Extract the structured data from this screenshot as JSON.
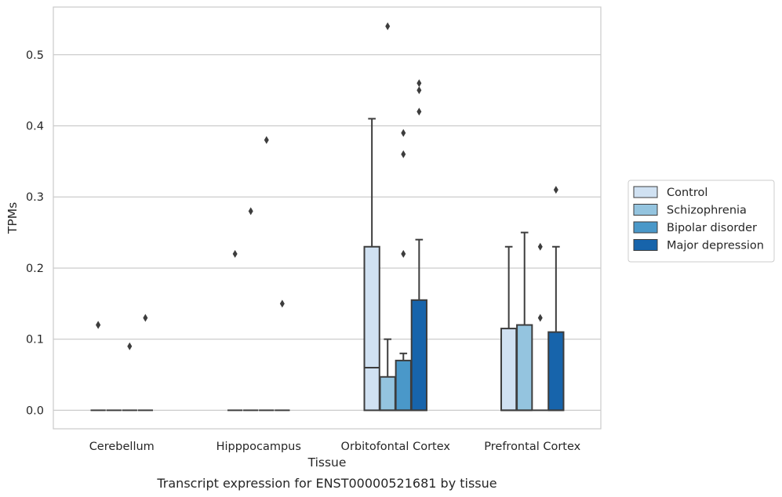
{
  "chart_data": {
    "type": "box",
    "caption": "Transcript expression for ENST00000521681 by tissue",
    "xlabel": "Tissue",
    "ylabel": "TPMs",
    "ylim": [
      -0.026,
      0.567
    ],
    "yticks": [
      0.0,
      0.1,
      0.2,
      0.3,
      0.4,
      0.5
    ],
    "ytick_labels": [
      "0.0",
      "0.1",
      "0.2",
      "0.3",
      "0.4",
      "0.5"
    ],
    "grid": "horizontal",
    "legend_position": "right",
    "categories": [
      "Cerebellum",
      "Hipppocampus",
      "Orbitofontal Cortex",
      "Prefrontal Cortex"
    ],
    "series": [
      {
        "name": "Control",
        "color": "#d0e1f2",
        "boxes": [
          {
            "category": "Cerebellum",
            "whislo": 0,
            "q1": 0,
            "med": 0,
            "q3": 0,
            "whishi": 0,
            "fliers": [
              0.12,
              0.12
            ]
          },
          {
            "category": "Hipppocampus",
            "whislo": 0,
            "q1": 0,
            "med": 0,
            "q3": 0,
            "whishi": 0,
            "fliers": [
              0.22
            ]
          },
          {
            "category": "Orbitofontal Cortex",
            "whislo": 0,
            "q1": 0,
            "med": 0.06,
            "q3": 0.23,
            "whishi": 0.41,
            "fliers": []
          },
          {
            "category": "Prefrontal Cortex",
            "whislo": 0,
            "q1": 0,
            "med": 0,
            "q3": 0.115,
            "whishi": 0.23,
            "fliers": []
          }
        ]
      },
      {
        "name": "Schizophrenia",
        "color": "#94c4df",
        "boxes": [
          {
            "category": "Cerebellum",
            "whislo": 0,
            "q1": 0,
            "med": 0,
            "q3": 0,
            "whishi": 0,
            "fliers": []
          },
          {
            "category": "Hipppocampus",
            "whislo": 0,
            "q1": 0,
            "med": 0,
            "q3": 0,
            "whishi": 0,
            "fliers": [
              0.28
            ]
          },
          {
            "category": "Orbitofontal Cortex",
            "whislo": 0,
            "q1": 0,
            "med": 0,
            "q3": 0.047,
            "whishi": 0.1,
            "fliers": [
              0.54
            ]
          },
          {
            "category": "Prefrontal Cortex",
            "whislo": 0,
            "q1": 0,
            "med": 0,
            "q3": 0.12,
            "whishi": 0.25,
            "fliers": []
          }
        ]
      },
      {
        "name": "Bipolar disorder",
        "color": "#4a98c9",
        "boxes": [
          {
            "category": "Cerebellum",
            "whislo": 0,
            "q1": 0,
            "med": 0,
            "q3": 0,
            "whishi": 0,
            "fliers": [
              0.09
            ]
          },
          {
            "category": "Hipppocampus",
            "whislo": 0,
            "q1": 0,
            "med": 0,
            "q3": 0,
            "whishi": 0,
            "fliers": [
              0.38
            ]
          },
          {
            "category": "Orbitofontal Cortex",
            "whislo": 0,
            "q1": 0,
            "med": 0,
            "q3": 0.07,
            "whishi": 0.08,
            "fliers": [
              0.22,
              0.36,
              0.39
            ]
          },
          {
            "category": "Prefrontal Cortex",
            "whislo": 0,
            "q1": 0,
            "med": 0,
            "q3": 0,
            "whishi": 0,
            "fliers": [
              0.13,
              0.23
            ]
          }
        ]
      },
      {
        "name": "Major depression",
        "color": "#1764ab",
        "boxes": [
          {
            "category": "Cerebellum",
            "whislo": 0,
            "q1": 0,
            "med": 0,
            "q3": 0,
            "whishi": 0,
            "fliers": [
              0.13
            ]
          },
          {
            "category": "Hipppocampus",
            "whislo": 0,
            "q1": 0,
            "med": 0,
            "q3": 0,
            "whishi": 0,
            "fliers": [
              0.15
            ]
          },
          {
            "category": "Orbitofontal Cortex",
            "whislo": 0,
            "q1": 0,
            "med": 0,
            "q3": 0.155,
            "whishi": 0.24,
            "fliers": [
              0.42,
              0.45,
              0.46
            ]
          },
          {
            "category": "Prefrontal Cortex",
            "whislo": 0,
            "q1": 0,
            "med": 0,
            "q3": 0.11,
            "whishi": 0.23,
            "fliers": [
              0.31
            ]
          }
        ]
      }
    ]
  }
}
